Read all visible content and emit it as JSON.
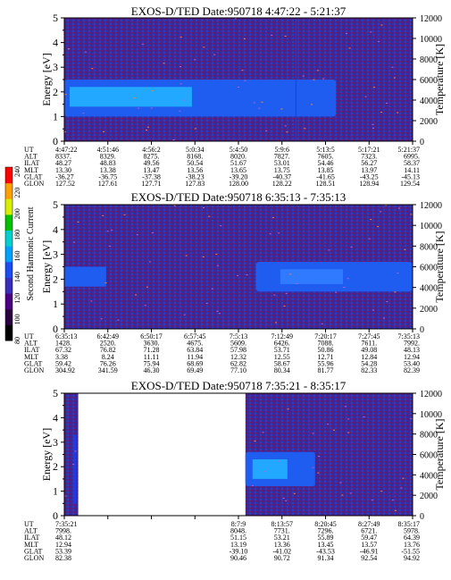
{
  "chart_data": [
    {
      "type": "heatmap",
      "title": "EXOS-D/TED   Date:950718  4:47:22 - 5:21:37",
      "ylabel": "Energy [eV]",
      "ylabel_right": "Temperature [K]",
      "ylim": [
        0,
        5
      ],
      "yticks": [
        "0",
        "1",
        "2",
        "3",
        "4",
        "5"
      ],
      "ylim_right": [
        0,
        12000
      ],
      "yticks_right": [
        "0",
        "2000",
        "4000",
        "6000",
        "8000",
        "10000",
        "12000"
      ],
      "aux_labels": [
        "UT",
        "ALT",
        "ILAT",
        "MLT",
        "GLAT",
        "GLON"
      ],
      "aux_rows": [
        [
          "4:47:22",
          "4:51:46",
          "4:56:2",
          "5:0:34",
          "5:4:50",
          "5:9:6",
          "5:13:5",
          "5:17:21",
          "5:21:37"
        ],
        [
          "8337.",
          "8329.",
          "8275.",
          "8168.",
          "8020.",
          "7827.",
          "7605.",
          "7323.",
          "6995."
        ],
        [
          "48.27",
          "48.83",
          "49.56",
          "50.54",
          "51.67",
          "53.01",
          "54.46",
          "56.27",
          "58.37"
        ],
        [
          "13.30",
          "13.38",
          "13.47",
          "13.56",
          "13.65",
          "13.75",
          "13.85",
          "13.97",
          "14.11"
        ],
        [
          "-36.27",
          "-36.75",
          "-37.38",
          "-38.23",
          "-39.20",
          "-40.37",
          "-41.65",
          "-43.25",
          "-45.13"
        ],
        [
          "127.52",
          "127.61",
          "127.71",
          "127.83",
          "128.00",
          "128.22",
          "128.51",
          "128.94",
          "129.54"
        ]
      ],
      "band_energy_ev": [
        1.0,
        2.5
      ]
    },
    {
      "type": "heatmap",
      "title": "EXOS-D/TED   Date:950718  6:35:13 - 7:35:13",
      "ylabel": "Energy [eV]",
      "ylabel_right": "Temperature [K]",
      "ylim": [
        0,
        5
      ],
      "yticks": [
        "0",
        "1",
        "2",
        "3",
        "4",
        "5"
      ],
      "ylim_right": [
        0,
        12000
      ],
      "yticks_right": [
        "0",
        "2000",
        "4000",
        "6000",
        "8000",
        "10000",
        "12000"
      ],
      "aux_labels": [
        "UT",
        "ALT",
        "ILAT",
        "MLT",
        "GLAT",
        "GLON"
      ],
      "aux_rows": [
        [
          "6:35:13",
          "6:42:49",
          "6:50:17",
          "6:57:45",
          "7:5:13",
          "7:12:49",
          "7:20:17",
          "7:27:45",
          "7:35:13"
        ],
        [
          "1428.",
          "2520.",
          "3630.",
          "4675.",
          "5609.",
          "6426.",
          "7088.",
          "7611.",
          "7992."
        ],
        [
          "67.32",
          "76.82",
          "71.28",
          "63.84",
          "57.98",
          "53.71",
          "50.86",
          "49.08",
          "48.13"
        ],
        [
          "3.38",
          "8.24",
          "11.11",
          "11.94",
          "12.32",
          "12.55",
          "12.71",
          "12.84",
          "12.94"
        ],
        [
          "59.42",
          "76.26",
          "75.94",
          "68.69",
          "62.82",
          "58.67",
          "55.96",
          "54.28",
          "53.40"
        ],
        [
          "304.92",
          "341.59",
          "46.30",
          "69.49",
          "77.10",
          "80.34",
          "81.77",
          "82.33",
          "82.39"
        ]
      ],
      "band_energy_ev": [
        1.5,
        2.7
      ]
    },
    {
      "type": "heatmap",
      "title": "EXOS-D/TED   Date:950718  7:35:21 - 8:35:17",
      "ylabel": "Energy [eV]",
      "ylabel_right": "Temperature [K]",
      "ylim": [
        0,
        5
      ],
      "yticks": [
        "0",
        "1",
        "2",
        "3",
        "4",
        "5"
      ],
      "ylim_right": [
        0,
        12000
      ],
      "yticks_right": [
        "0",
        "2000",
        "4000",
        "6000",
        "8000",
        "10000",
        "12000"
      ],
      "aux_labels": [
        "UT",
        "ALT",
        "ILAT",
        "MLT",
        "GLAT",
        "GLON"
      ],
      "aux_rows": [
        [
          "7:35:21",
          "",
          "",
          "",
          "8:7:9",
          "8:13:57",
          "8:20:45",
          "8:27:49",
          "8:35:17"
        ],
        [
          "7998.",
          "",
          "",
          "",
          "8048.",
          "7731.",
          "7296.",
          "6721.",
          "5978."
        ],
        [
          "48.12",
          "",
          "",
          "",
          "51.15",
          "53.21",
          "55.89",
          "59.47",
          "64.39"
        ],
        [
          "12.94",
          "",
          "",
          "",
          "13.19",
          "13.36",
          "13.45",
          "13.57",
          "13.76"
        ],
        [
          "53.39",
          "",
          "",
          "",
          "-39.10",
          "-41.02",
          "-43.53",
          "-46.91",
          "-51.55"
        ],
        [
          "82.38",
          "",
          "",
          "",
          "90.46",
          "90.72",
          "91.34",
          "92.54",
          "94.92"
        ]
      ],
      "data_gap_fraction": [
        0.04,
        0.52
      ],
      "band_energy_ev": [
        1.2,
        2.6
      ]
    }
  ],
  "colorbar": {
    "label": "Second Harmonic Current",
    "ticks": [
      "80",
      "100",
      "120",
      "140",
      "160",
      "180",
      "200",
      "220",
      "240"
    ],
    "colors": [
      "#000000",
      "#2a0040",
      "#4b0082",
      "#3b2dbb",
      "#1a4cf0",
      "#00a0ff",
      "#00d0d0",
      "#00c000",
      "#d8f000",
      "#ffa000",
      "#ff0000"
    ]
  },
  "palette": {
    "background_noise": "#3a2a9a",
    "band": "#1f6cff",
    "band_core": "#22a8ff"
  }
}
